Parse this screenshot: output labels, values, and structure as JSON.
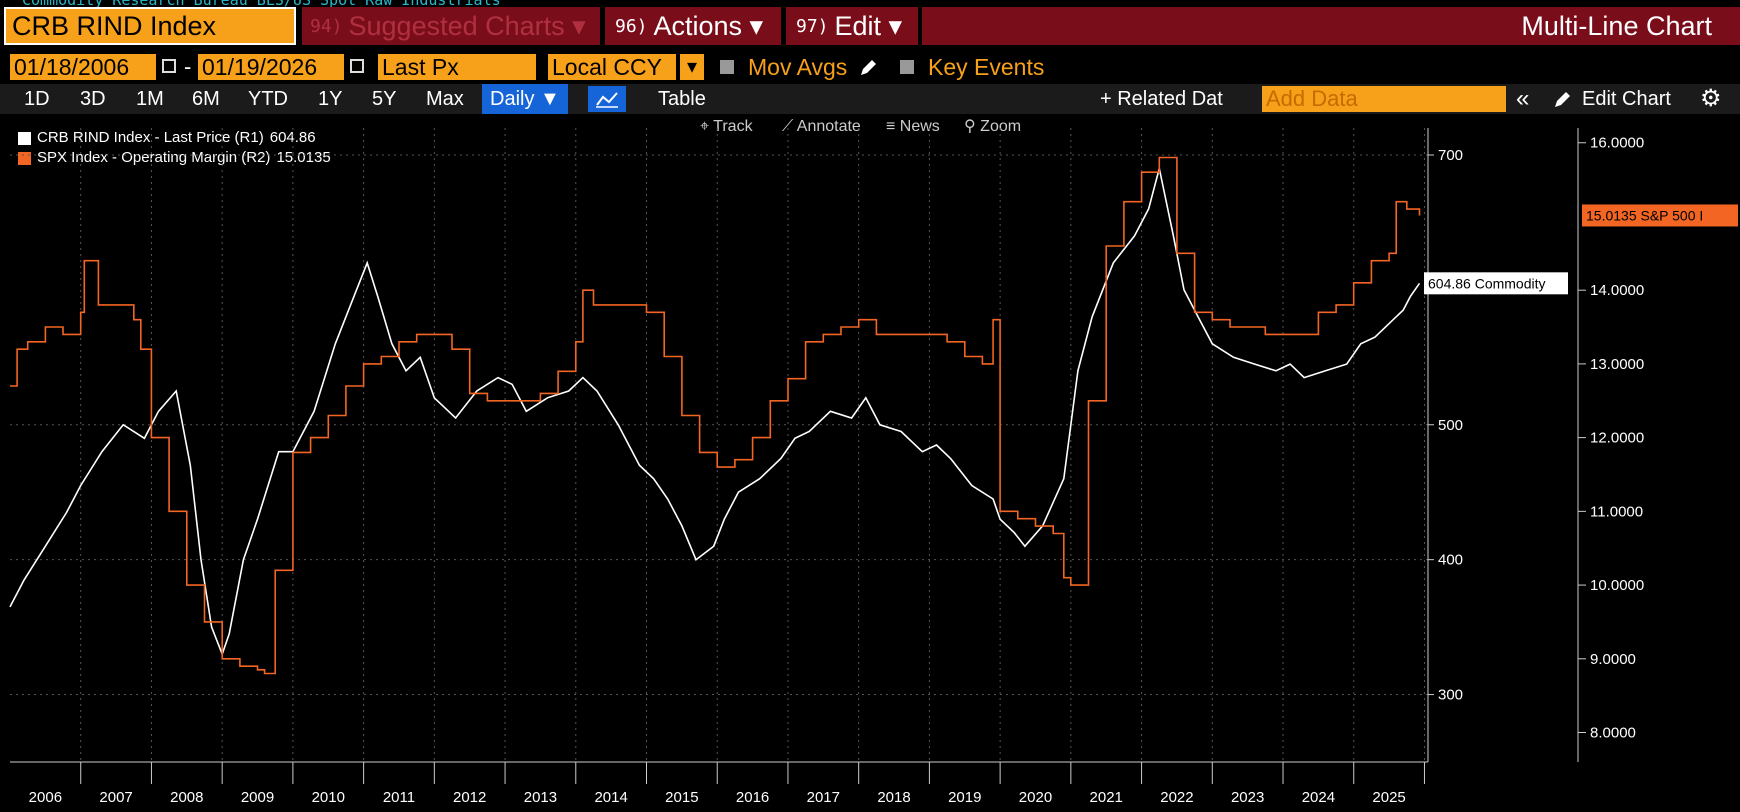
{
  "header": {
    "subtitle": "Commodity Research Bureau BLS/US Spot Raw Industrials",
    "ticker": "CRB RIND Index",
    "suggest_num": "94)",
    "suggest_label": "Suggested Charts ▾",
    "actions_num": "96)",
    "actions_label": "Actions ▾",
    "edit_num": "97)",
    "edit_label": "Edit ▾",
    "title": "Multi-Line Chart"
  },
  "controls": {
    "start_date": "01/18/2006",
    "end_date": "01/19/2026",
    "dash": "-",
    "field": "Last Px",
    "currency": "Local CCY",
    "currency_arrow": "▾",
    "mov_avgs": "Mov Avgs",
    "key_events": "Key Events"
  },
  "toolbar": {
    "periods": [
      "1D",
      "3D",
      "1M",
      "6M",
      "YTD",
      "1Y",
      "5Y",
      "Max"
    ],
    "frequency": "Daily ▼",
    "table": "Table",
    "related": "+ Related Dat",
    "add_data_placeholder": "Add Data",
    "collapse": "«",
    "edit_chart": "Edit Chart",
    "gear": "⚙"
  },
  "chart_tools": [
    "Track",
    "Annotate",
    "News",
    "Zoom"
  ],
  "colors": {
    "series1": "#ffffff",
    "series2": "#f26522",
    "ticker_bg": "#f7a01a",
    "header_bg": "#7a0d1a",
    "daily_bg": "#1565d8"
  },
  "chart_data": {
    "type": "line",
    "legend": [
      {
        "label": "CRB RIND Index - Last Price (R1)",
        "value": "604.86"
      },
      {
        "label": "SPX Index - Operating Margin (R2)",
        "value": "15.0135"
      }
    ],
    "x_ticks": [
      "2006",
      "2007",
      "2008",
      "2009",
      "2010",
      "2011",
      "2012",
      "2013",
      "2014",
      "2015",
      "2016",
      "2017",
      "2018",
      "2019",
      "2020",
      "2021",
      "2022",
      "2023",
      "2024",
      "2025"
    ],
    "x_range": [
      2006.0,
      2026.05
    ],
    "right_axis_1": {
      "ticks": [
        "300",
        "400",
        "500",
        "700"
      ],
      "range": [
        250,
        720
      ]
    },
    "right_axis_2": {
      "ticks": [
        "8.0000",
        "9.0000",
        "10.0000",
        "11.0000",
        "12.0000",
        "13.0000",
        "14.0000",
        "16.0000"
      ],
      "range": [
        7.6,
        16.2
      ]
    },
    "last_labels": {
      "series1": "604.86 Commodity",
      "series2": "15.0135 S&P 500 I"
    },
    "series": [
      {
        "name": "CRB RIND Index - Last Price (R1)",
        "axis": 1,
        "x": [
          2006.0,
          2006.2,
          2006.5,
          2006.8,
          2007.0,
          2007.3,
          2007.6,
          2007.9,
          2008.1,
          2008.35,
          2008.55,
          2008.7,
          2008.85,
          2009.0,
          2009.1,
          2009.3,
          2009.5,
          2009.8,
          2010.0,
          2010.3,
          2010.6,
          2010.9,
          2011.05,
          2011.2,
          2011.4,
          2011.6,
          2011.8,
          2012.0,
          2012.3,
          2012.6,
          2012.9,
          2013.1,
          2013.3,
          2013.6,
          2013.9,
          2014.1,
          2014.3,
          2014.6,
          2014.9,
          2015.1,
          2015.3,
          2015.5,
          2015.7,
          2015.95,
          2016.1,
          2016.3,
          2016.6,
          2016.9,
          2017.1,
          2017.3,
          2017.6,
          2017.9,
          2018.1,
          2018.3,
          2018.6,
          2018.9,
          2019.1,
          2019.3,
          2019.6,
          2019.9,
          2020.0,
          2020.2,
          2020.35,
          2020.6,
          2020.9,
          2021.1,
          2021.3,
          2021.6,
          2021.9,
          2022.1,
          2022.25,
          2022.45,
          2022.6,
          2022.8,
          2023.0,
          2023.3,
          2023.6,
          2023.9,
          2024.1,
          2024.3,
          2024.6,
          2024.9,
          2025.1,
          2025.3,
          2025.5,
          2025.7,
          2025.8,
          2025.93
        ],
        "y": [
          365,
          385,
          410,
          435,
          455,
          480,
          500,
          490,
          510,
          525,
          470,
          400,
          350,
          330,
          345,
          400,
          430,
          480,
          480,
          510,
          560,
          600,
          620,
          595,
          560,
          540,
          550,
          520,
          505,
          525,
          535,
          530,
          510,
          520,
          525,
          535,
          525,
          500,
          470,
          460,
          445,
          425,
          400,
          410,
          430,
          450,
          460,
          475,
          490,
          495,
          510,
          505,
          520,
          500,
          495,
          480,
          485,
          475,
          455,
          445,
          430,
          420,
          410,
          425,
          460,
          540,
          580,
          620,
          640,
          660,
          690,
          640,
          600,
          580,
          560,
          550,
          545,
          540,
          545,
          535,
          540,
          545,
          560,
          565,
          575,
          585,
          595,
          604.86
        ]
      },
      {
        "name": "SPX Index - Operating Margin (R2)",
        "axis": 2,
        "x": [
          2006.0,
          2006.1,
          2006.25,
          2006.5,
          2006.75,
          2007.0,
          2007.05,
          2007.25,
          2007.5,
          2007.75,
          2007.85,
          2008.0,
          2008.25,
          2008.5,
          2008.75,
          2009.0,
          2009.25,
          2009.5,
          2009.6,
          2009.75,
          2010.0,
          2010.25,
          2010.5,
          2010.75,
          2011.0,
          2011.25,
          2011.5,
          2011.75,
          2012.0,
          2012.25,
          2012.5,
          2012.75,
          2013.0,
          2013.25,
          2013.5,
          2013.75,
          2014.0,
          2014.1,
          2014.25,
          2014.5,
          2014.75,
          2015.0,
          2015.25,
          2015.5,
          2015.75,
          2016.0,
          2016.25,
          2016.5,
          2016.75,
          2017.0,
          2017.25,
          2017.5,
          2017.75,
          2018.0,
          2018.25,
          2018.5,
          2018.75,
          2019.0,
          2019.25,
          2019.5,
          2019.75,
          2019.9,
          2020.0,
          2020.25,
          2020.5,
          2020.75,
          2020.9,
          2021.0,
          2021.25,
          2021.5,
          2021.75,
          2022.0,
          2022.25,
          2022.5,
          2022.75,
          2023.0,
          2023.25,
          2023.5,
          2023.75,
          2024.0,
          2024.25,
          2024.5,
          2024.75,
          2025.0,
          2025.25,
          2025.5,
          2025.6,
          2025.75,
          2025.93
        ],
        "y": [
          12.7,
          13.2,
          13.3,
          13.5,
          13.4,
          13.7,
          14.4,
          13.8,
          13.8,
          13.6,
          13.2,
          12.0,
          11.0,
          10.0,
          9.5,
          9.0,
          8.9,
          8.85,
          8.8,
          10.2,
          11.8,
          12.0,
          12.3,
          12.7,
          13.0,
          13.1,
          13.3,
          13.4,
          13.4,
          13.2,
          12.6,
          12.5,
          12.5,
          12.5,
          12.6,
          12.9,
          13.3,
          14.0,
          13.8,
          13.8,
          13.8,
          13.7,
          13.1,
          12.3,
          11.8,
          11.6,
          11.7,
          12.0,
          12.5,
          12.8,
          13.3,
          13.4,
          13.5,
          13.6,
          13.4,
          13.4,
          13.4,
          13.4,
          13.3,
          13.1,
          13.0,
          13.6,
          11.0,
          10.9,
          10.8,
          10.7,
          10.1,
          10.0,
          12.5,
          14.6,
          15.2,
          15.6,
          15.8,
          14.5,
          13.7,
          13.6,
          13.5,
          13.5,
          13.4,
          13.4,
          13.4,
          13.7,
          13.8,
          14.1,
          14.4,
          14.5,
          15.2,
          15.1,
          15.0135
        ]
      }
    ]
  }
}
